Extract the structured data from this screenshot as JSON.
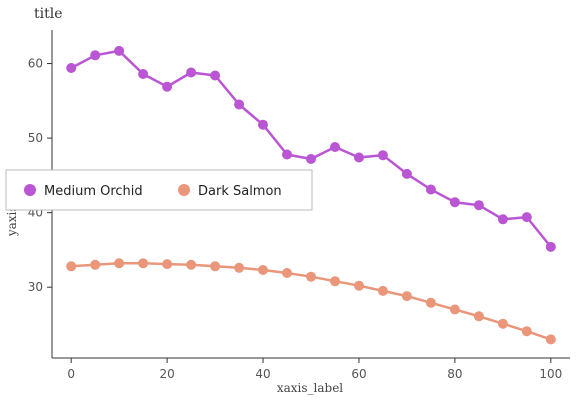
{
  "chart_data": {
    "type": "line",
    "title": "title",
    "xlabel": "xaxis_label",
    "ylabel": "yaxis_label",
    "xlim": [
      -4,
      104
    ],
    "ylim": [
      20.5,
      64.5
    ],
    "xticks": [
      0,
      20,
      40,
      60,
      80,
      100
    ],
    "yticks": [
      30,
      40,
      50,
      60
    ],
    "x": [
      0,
      5,
      10,
      15,
      20,
      25,
      30,
      35,
      40,
      45,
      50,
      55,
      60,
      65,
      70,
      75,
      80,
      85,
      90,
      95,
      100
    ],
    "series": [
      {
        "name": "Medium Orchid",
        "color": "#BA55D3",
        "values": [
          59.4,
          61.1,
          61.7,
          58.6,
          56.9,
          58.8,
          58.4,
          54.5,
          51.8,
          47.8,
          47.2,
          48.8,
          47.4,
          47.7,
          45.2,
          43.1,
          41.4,
          41.0,
          39.1,
          39.4,
          35.4
        ]
      },
      {
        "name": "Dark Salmon",
        "color": "#E9967A",
        "values": [
          32.8,
          33.0,
          33.2,
          33.2,
          33.1,
          33.0,
          32.8,
          32.6,
          32.3,
          31.9,
          31.4,
          30.8,
          30.2,
          29.5,
          28.8,
          27.9,
          27.0,
          26.1,
          25.1,
          24.1,
          23.0
        ]
      }
    ],
    "legend": {
      "position": "center-left",
      "entries": [
        "Medium Orchid",
        "Dark Salmon"
      ]
    },
    "grid": false
  }
}
